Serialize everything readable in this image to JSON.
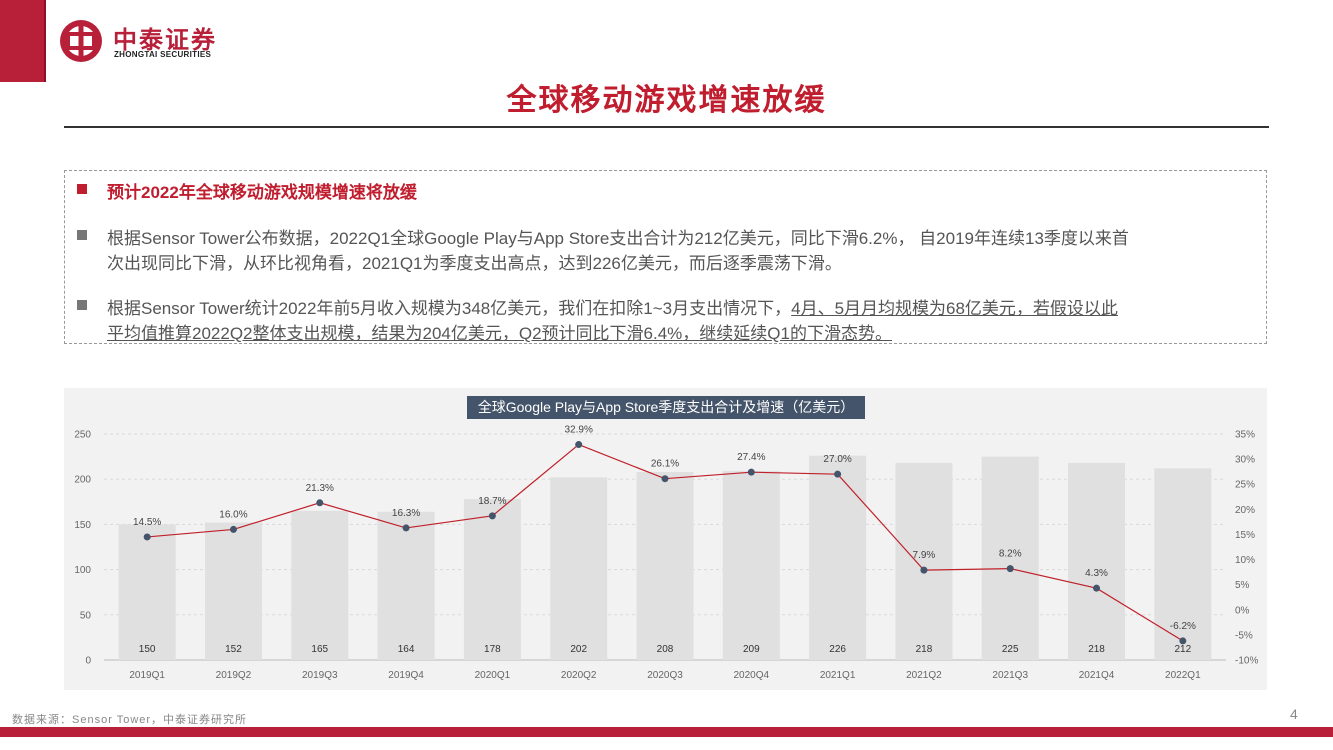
{
  "brand": {
    "name_cn": "中泰证券",
    "name_en": "ZHONGTAI SECURITIES",
    "accent_color": "#b8203a"
  },
  "page_title": "全球移动游戏增速放缓",
  "textbox": {
    "heading": "预计2022年全球移动游戏规模增速将放缓",
    "bullet1_line1": "根据Sensor Tower公布数据，2022Q1全球Google Play与App Store支出合计为212亿美元，同比下滑6.2%， 自2019年连续13季度以来首",
    "bullet1_line2": "次出现同比下滑，从环比视角看，2021Q1为季度支出高点，达到226亿美元，而后逐季震荡下滑。",
    "bullet2_line1_plain": "根据Sensor Tower统计2022年前5月收入规模为348亿美元，我们在扣除1~3月支出情况下，",
    "bullet2_line1_underlined": "4月、5月月均规模为68亿美元，若假设以此",
    "bullet2_line2_underlined": "平均值推算2022Q2整体支出规模，结果为204亿美元，Q2预计同比下滑6.4%，继续延续Q1的下滑态势。"
  },
  "chart_data": {
    "type": "bar",
    "title": "全球Google Play与App Store季度支出合计及增速（亿美元）",
    "categories": [
      "2019Q1",
      "2019Q2",
      "2019Q3",
      "2019Q4",
      "2020Q1",
      "2020Q2",
      "2020Q3",
      "2020Q4",
      "2021Q1",
      "2021Q2",
      "2021Q3",
      "2021Q4",
      "2022Q1"
    ],
    "series": [
      {
        "type": "bar",
        "axis": "left",
        "values": [
          150,
          152,
          165,
          164,
          178,
          202,
          208,
          209,
          226,
          218,
          225,
          218,
          212
        ]
      },
      {
        "type": "line",
        "axis": "right",
        "values": [
          14.5,
          16.0,
          21.3,
          16.3,
          18.7,
          32.9,
          26.1,
          27.4,
          27.0,
          7.9,
          8.2,
          4.3,
          -6.2
        ]
      }
    ],
    "line_labels": [
      "14.5%",
      "16.0%",
      "21.3%",
      "16.3%",
      "18.7%",
      "32.9%",
      "26.1%",
      "27.4%",
      "27.0%",
      "7.9%",
      "8.2%",
      "4.3%",
      "-6.2%"
    ],
    "ylim": [
      0,
      250
    ],
    "yticks": [
      0,
      50,
      100,
      150,
      200,
      250
    ],
    "y2lim": [
      -10,
      35
    ],
    "y2ticks": [
      -10,
      -5,
      0,
      5,
      10,
      15,
      20,
      25,
      30,
      35
    ],
    "y2tick_labels": [
      "-10%",
      "-5%",
      "0%",
      "5%",
      "10%",
      "15%",
      "20%",
      "25%",
      "30%",
      "35%"
    ],
    "grid": true,
    "colors": {
      "bar": "#e0e0e0",
      "line": "#c0202a",
      "marker": "#44546a",
      "title_bg": "#44546a"
    }
  },
  "source": "数据来源：Sensor Tower，中泰证券研究所",
  "page_number": "4"
}
